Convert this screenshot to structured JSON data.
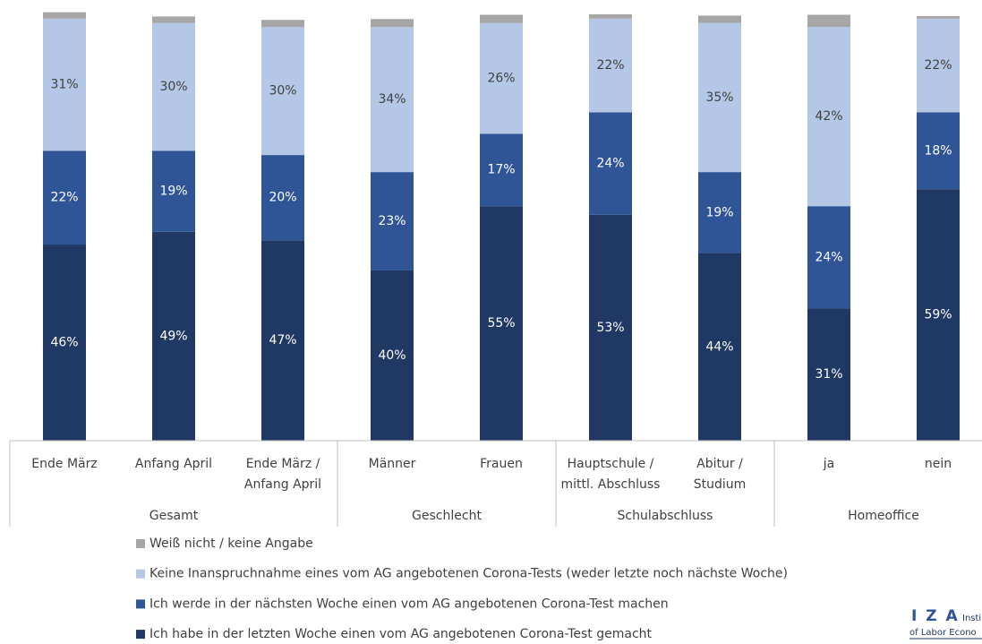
{
  "chart_data": {
    "type": "stacked_bar",
    "categories": [
      [
        "Ende März"
      ],
      [
        "Anfang April"
      ],
      [
        "Ende März /",
        "Anfang April"
      ],
      [
        "Männer"
      ],
      [
        "Frauen"
      ],
      [
        "Hauptschule /",
        "mittl. Abschluss"
      ],
      [
        "Abitur /",
        "Studium"
      ],
      [
        "ja"
      ],
      [
        "nein"
      ]
    ],
    "groups": [
      {
        "label": "Gesamt",
        "span": 3
      },
      {
        "label": "Geschlecht",
        "span": 2
      },
      {
        "label": "Schulabschluss",
        "span": 2
      },
      {
        "label": "Homeoffice",
        "span": 2
      }
    ],
    "ylim": [
      0,
      100
    ],
    "series": [
      {
        "name": "Ich habe in der letzten Woche einen vom AG angebotenen Corona-Test gemacht",
        "color": "#1f3864",
        "values": [
          46,
          49,
          47,
          40,
          55,
          53,
          44,
          31,
          59
        ],
        "value_labels": [
          "46%",
          "49%",
          "47%",
          "40%",
          "55%",
          "53%",
          "44%",
          "31%",
          "59%"
        ]
      },
      {
        "name": "Ich werde in der nächsten Woche einen vom AG angebotenen Corona-Test machen",
        "color": "#2f5597",
        "values": [
          22,
          19,
          20,
          23,
          17,
          24,
          19,
          24,
          18
        ],
        "value_labels": [
          "22%",
          "19%",
          "20%",
          "23%",
          "17%",
          "24%",
          "19%",
          "24%",
          "18%"
        ]
      },
      {
        "name": "Keine Inanspruchnahme eines vom AG angebotenen Corona-Tests (weder letzte noch nächste Woche)",
        "color": "#b4c7e7",
        "values": [
          31,
          30,
          30,
          34,
          26,
          22,
          35,
          42,
          22
        ],
        "value_labels": [
          "31%",
          "30%",
          "30%",
          "34%",
          "26%",
          "22%",
          "35%",
          "42%",
          "22%"
        ]
      },
      {
        "name": "Weiß nicht / keine Angabe",
        "color": "#a6a6a6",
        "values": [
          1.5,
          1.5,
          1.7,
          1.9,
          1.9,
          1,
          1.7,
          2.9,
          0.6
        ]
      }
    ],
    "logo": {
      "mark": "I Z A",
      "line1": "Insti",
      "line2": "of Labor Econo"
    }
  }
}
